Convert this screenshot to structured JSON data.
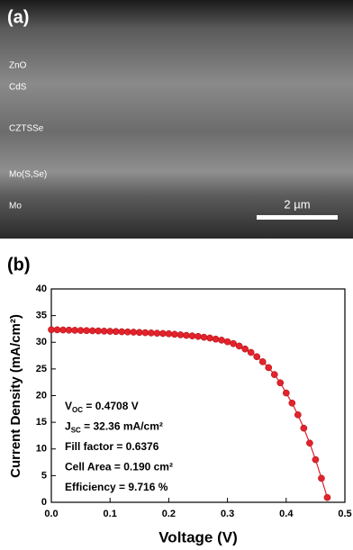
{
  "panel_a": {
    "panel_label": "(a)",
    "layers": [
      "ZnO",
      "CdS",
      "CZTSSe",
      "Mo(S,Se)",
      "Mo"
    ],
    "scale_bar": "2 µm"
  },
  "chart_data": {
    "type": "line",
    "panel_label": "(b)",
    "x_label": "Voltage (V)",
    "y_label": "Current Density (mA/cm²)",
    "x": [
      0,
      0.01,
      0.02,
      0.03,
      0.04,
      0.05,
      0.06,
      0.07,
      0.08,
      0.09,
      0.1,
      0.11,
      0.12,
      0.13,
      0.14,
      0.15,
      0.16,
      0.17,
      0.18,
      0.19,
      0.2,
      0.21,
      0.22,
      0.23,
      0.24,
      0.25,
      0.26,
      0.27,
      0.28,
      0.29,
      0.3,
      0.31,
      0.32,
      0.33,
      0.34,
      0.35,
      0.36,
      0.37,
      0.38,
      0.39,
      0.4,
      0.41,
      0.42,
      0.43,
      0.44,
      0.45,
      0.46,
      0.47
    ],
    "series": [
      {
        "color": "#e3222b",
        "values": [
          32.36,
          32.34,
          32.31,
          32.28,
          32.25,
          32.22,
          32.19,
          32.16,
          32.13,
          32.09,
          32.06,
          32.02,
          31.98,
          31.94,
          31.9,
          31.85,
          31.8,
          31.75,
          31.7,
          31.65,
          31.6,
          31.5,
          31.4,
          31.3,
          31.2,
          31.1,
          30.95,
          30.8,
          30.6,
          30.4,
          30.1,
          29.75,
          29.3,
          28.75,
          28.1,
          27.3,
          26.35,
          25.25,
          23.95,
          22.4,
          20.5,
          18.6,
          16.4,
          13.9,
          11.1,
          8.0,
          4.5,
          0.9
        ]
      }
    ],
    "xlim": [
      0,
      0.5
    ],
    "xticks": [
      {
        "value": 0,
        "label": "0.0"
      },
      0.1,
      0.2,
      0.3,
      0.4,
      0.5
    ],
    "ylim": [
      0,
      40
    ],
    "yticks": [
      0,
      5,
      10,
      15,
      20,
      25,
      30,
      35,
      40
    ],
    "annotations": [
      {
        "main": "V",
        "sub": "OC",
        "rest": " = 0.4708 V"
      },
      {
        "main": "J",
        "sub": "SC",
        "rest": " = 32.36 mA/cm²"
      },
      {
        "main": "Fill factor = 0.6376"
      },
      {
        "main": "Cell Area = 0.190 cm²"
      },
      {
        "main": "Efficiency = 9.716 %"
      }
    ]
  }
}
